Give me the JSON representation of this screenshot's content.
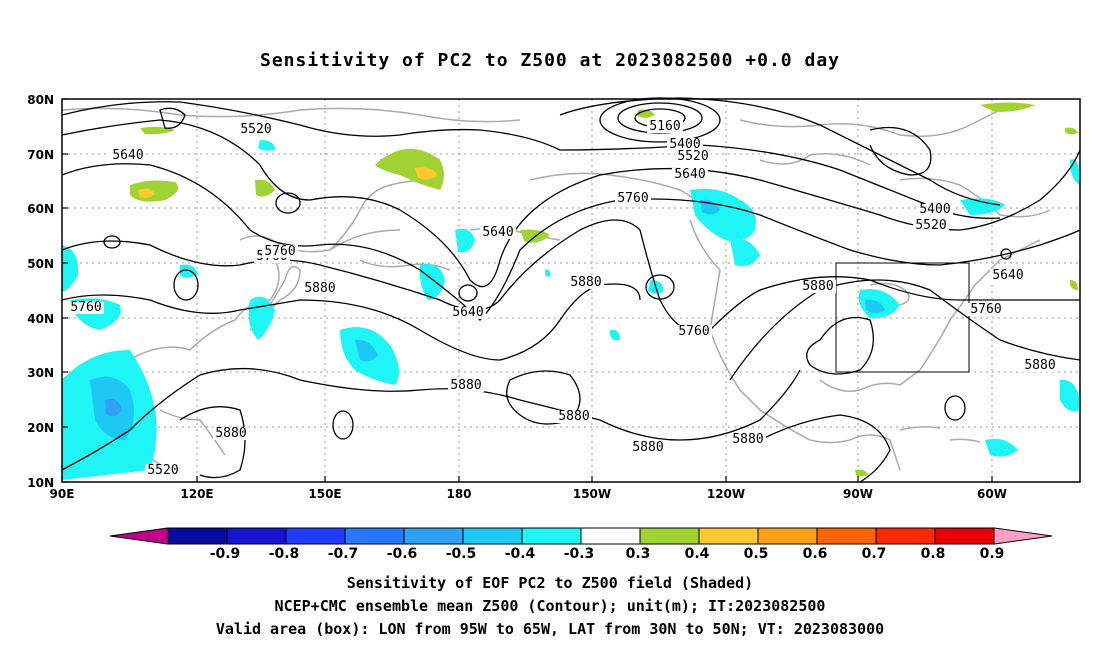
{
  "title": "Sensitivity of PC2 to Z500 at 2023082500 +0.0 day",
  "lat_ticks": [
    "80N",
    "70N",
    "60N",
    "50N",
    "40N",
    "30N",
    "20N",
    "10N"
  ],
  "lon_ticks": [
    "90E",
    "120E",
    "150E",
    "180",
    "150W",
    "120W",
    "90W",
    "60W"
  ],
  "contour_labels": [
    {
      "text": "5160"
    },
    {
      "text": "5400"
    },
    {
      "text": "5520"
    },
    {
      "text": "5640"
    },
    {
      "text": "5760"
    },
    {
      "text": "5520"
    },
    {
      "text": "5640"
    },
    {
      "text": "5400"
    },
    {
      "text": "5520"
    },
    {
      "text": "5640"
    },
    {
      "text": "5760"
    },
    {
      "text": "5880"
    },
    {
      "text": "5640"
    },
    {
      "text": "5880"
    },
    {
      "text": "5760"
    },
    {
      "text": "5880"
    },
    {
      "text": "5760"
    },
    {
      "text": "5760"
    },
    {
      "text": "5880"
    },
    {
      "text": "5880"
    },
    {
      "text": "5880"
    },
    {
      "text": "5880"
    },
    {
      "text": "5880"
    },
    {
      "text": "5880"
    },
    {
      "text": "5520"
    },
    {
      "text": "5640"
    },
    {
      "text": "5760"
    }
  ],
  "colorbar": {
    "labels": [
      "-0.9",
      "-0.8",
      "-0.7",
      "-0.6",
      "-0.5",
      "-0.4",
      "-0.3",
      "0.3",
      "0.4",
      "0.5",
      "0.6",
      "0.7",
      "0.8",
      "0.9"
    ],
    "colors": [
      "#0a0aa0",
      "#1414d2",
      "#1e3cff",
      "#2878ff",
      "#2ea0f5",
      "#1ec8f5",
      "#20f5f5",
      "#ffffff",
      "#a0d232",
      "#ffc832",
      "#ffa014",
      "#ff6400",
      "#ff2800",
      "#e60000"
    ],
    "low_end_color": "#c0008c",
    "high_end_color": "#ff9ec8"
  },
  "caption": {
    "line1": "Sensitivity of EOF PC2 to Z500 field (Shaded)",
    "line2": "NCEP+CMC ensemble mean Z500 (Contour); unit(m); IT:2023082500",
    "line3": "Valid area (box): LON from 95W to 65W, LAT from 30N to 50N; VT: 2023083000"
  }
}
